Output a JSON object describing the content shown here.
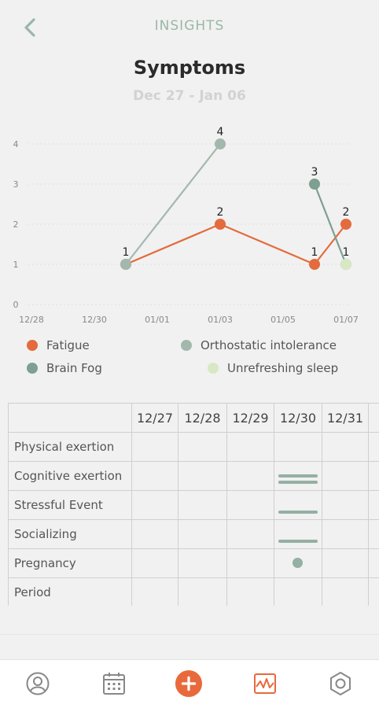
{
  "header": {
    "title": "INSIGHTS",
    "back_icon": "chevron-left-icon"
  },
  "page": {
    "title": "Symptoms",
    "date_range": "Dec 27 - Jan 06"
  },
  "colors": {
    "accent": "#e86a3c",
    "fatigue": "#e36b3d",
    "brain_fog": "#7e9f91",
    "orthostatic": "#a3b8ad",
    "unrefreshing": "#d8e8c4",
    "marker": "#94b0a2",
    "header": "#9ab7a9"
  },
  "chart_data": {
    "type": "line",
    "x_ticks": [
      "12/28",
      "12/30",
      "01/01",
      "01/03",
      "01/05",
      "01/07"
    ],
    "y_ticks": [
      "0",
      "1",
      "2",
      "3",
      "4"
    ],
    "ylim": [
      0,
      4
    ],
    "series": [
      {
        "name": "Fatigue",
        "color": "#e36b3d",
        "points": [
          {
            "x": "12/31",
            "y": 1
          },
          {
            "x": "01/03",
            "y": 2
          },
          {
            "x": "01/06",
            "y": 1
          },
          {
            "x": "01/07",
            "y": 2
          }
        ]
      },
      {
        "name": "Orthostatic intolerance",
        "color": "#a3b8ad",
        "points": [
          {
            "x": "12/31",
            "y": 1
          },
          {
            "x": "01/03",
            "y": 4
          }
        ]
      },
      {
        "name": "Brain Fog",
        "color": "#7e9f91",
        "points": [
          {
            "x": "01/06",
            "y": 3
          },
          {
            "x": "01/07",
            "y": 1
          }
        ]
      },
      {
        "name": "Unrefreshing sleep",
        "color": "#d8e8c4",
        "points": [
          {
            "x": "01/07",
            "y": 1
          }
        ]
      }
    ],
    "data_labels": [
      {
        "x": "12/31",
        "y": 1,
        "text": "1"
      },
      {
        "x": "01/03",
        "y": 4,
        "text": "4"
      },
      {
        "x": "01/03",
        "y": 2,
        "text": "2"
      },
      {
        "x": "01/06",
        "y": 3,
        "text": "3"
      },
      {
        "x": "01/06",
        "y": 1,
        "text": "1"
      },
      {
        "x": "01/07",
        "y": 2,
        "text": "2"
      },
      {
        "x": "01/07",
        "y": 1,
        "text": "1"
      }
    ],
    "grid": true,
    "legend_position": "bottom"
  },
  "legend": [
    {
      "label": "Fatigue",
      "color": "#e36b3d"
    },
    {
      "label": "Orthostatic intolerance",
      "color": "#a3b8ad"
    },
    {
      "label": "Brain Fog",
      "color": "#7e9f91"
    },
    {
      "label": "Unrefreshing sleep",
      "color": "#d8e8c4"
    }
  ],
  "table": {
    "columns": [
      "12/27",
      "12/28",
      "12/29",
      "12/30",
      "12/31"
    ],
    "rows": [
      {
        "label": "Physical exertion",
        "marks": {}
      },
      {
        "label": "Cognitive exertion",
        "marks": {
          "12/30": "double-bar"
        }
      },
      {
        "label": "Stressful Event",
        "marks": {
          "12/30": "bar"
        }
      },
      {
        "label": "Socializing",
        "marks": {
          "12/30": "bar-low"
        }
      },
      {
        "label": "Pregnancy",
        "marks": {
          "12/30": "dot"
        }
      },
      {
        "label": "Period",
        "marks": {}
      }
    ]
  },
  "nav": [
    {
      "name": "profile",
      "icon": "user-icon"
    },
    {
      "name": "calendar",
      "icon": "calendar-icon"
    },
    {
      "name": "add",
      "icon": "plus-icon"
    },
    {
      "name": "insights",
      "icon": "insights-icon",
      "active": true
    },
    {
      "name": "settings",
      "icon": "gear-icon"
    }
  ]
}
